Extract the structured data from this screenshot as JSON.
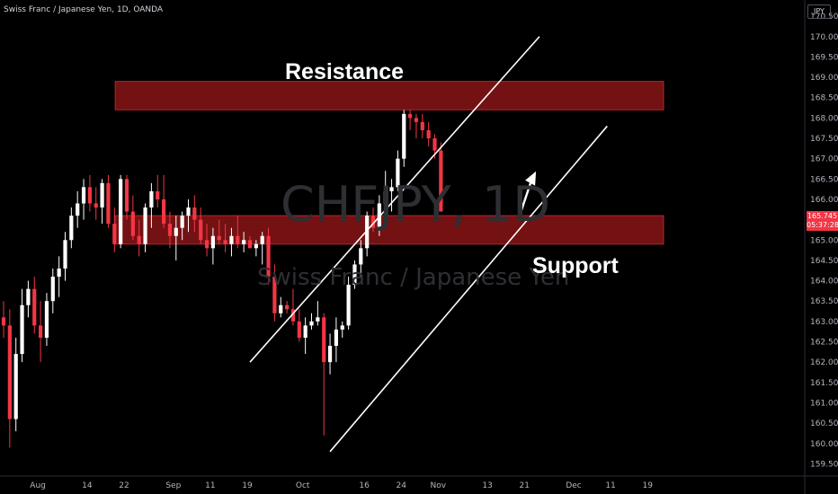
{
  "header": {
    "title": "Swiss Franc / Japanese Yen, 1D, OANDA",
    "currency": "JPY"
  },
  "price_tag": {
    "price": "165.745",
    "countdown": "05:37:28"
  },
  "watermark": {
    "symbol": "CHFJPY, 1D",
    "name": "Swiss Franc / Japanese Yen"
  },
  "annotations": {
    "resistance": "Resistance",
    "support": "Support"
  },
  "colors": {
    "up": "#ffffff",
    "down": "#f23645",
    "zone": "#7f1315",
    "zone_border": "#b3262b",
    "background": "#000000",
    "line": "#ffffff"
  },
  "chart_data": {
    "type": "candlestick",
    "y_ticks": [
      "159.500",
      "160.000",
      "160.500",
      "161.000",
      "161.500",
      "162.000",
      "162.500",
      "163.000",
      "163.500",
      "164.000",
      "164.500",
      "165.000",
      "165.500",
      "166.000",
      "166.500",
      "167.000",
      "167.500",
      "168.000",
      "168.500",
      "169.000",
      "169.500",
      "170.000",
      "170.500"
    ],
    "x_ticks": [
      {
        "label": "Aug",
        "bar": 6
      },
      {
        "label": "14",
        "bar": 14
      },
      {
        "label": "22",
        "bar": 20
      },
      {
        "label": "Sep",
        "bar": 28
      },
      {
        "label": "11",
        "bar": 34
      },
      {
        "label": "19",
        "bar": 40
      },
      {
        "label": "Oct",
        "bar": 49
      },
      {
        "label": "16",
        "bar": 59
      },
      {
        "label": "24",
        "bar": 65
      },
      {
        "label": "Nov",
        "bar": 71
      },
      {
        "label": "13",
        "bar": 79
      },
      {
        "label": "21",
        "bar": 85
      },
      {
        "label": "Dec",
        "bar": 93
      },
      {
        "label": "11",
        "bar": 99
      },
      {
        "label": "19",
        "bar": 105
      }
    ],
    "ylim": [
      159.2,
      170.9
    ],
    "candles": [
      [
        163.1,
        163.5,
        162.6,
        162.9
      ],
      [
        162.9,
        163.3,
        159.9,
        160.6
      ],
      [
        160.6,
        162.6,
        160.3,
        162.2
      ],
      [
        162.2,
        163.8,
        162.0,
        163.4
      ],
      [
        163.4,
        164.0,
        163.1,
        163.8
      ],
      [
        163.8,
        164.1,
        162.7,
        162.9
      ],
      [
        162.9,
        163.5,
        162.0,
        162.6
      ],
      [
        162.6,
        163.7,
        162.4,
        163.5
      ],
      [
        163.5,
        164.3,
        163.2,
        164.1
      ],
      [
        164.1,
        164.6,
        163.6,
        164.3
      ],
      [
        164.3,
        165.2,
        164.0,
        165.0
      ],
      [
        165.0,
        165.8,
        164.8,
        165.6
      ],
      [
        165.6,
        166.2,
        165.3,
        165.9
      ],
      [
        165.9,
        166.5,
        165.5,
        166.3
      ],
      [
        166.3,
        166.6,
        165.7,
        165.9
      ],
      [
        165.9,
        166.3,
        165.5,
        165.8
      ],
      [
        165.8,
        166.5,
        165.4,
        166.4
      ],
      [
        166.4,
        166.6,
        165.3,
        165.4
      ],
      [
        165.4,
        165.8,
        164.7,
        164.9
      ],
      [
        164.9,
        166.6,
        164.8,
        166.5
      ],
      [
        166.5,
        166.6,
        165.5,
        165.7
      ],
      [
        165.7,
        166.1,
        165.0,
        165.1
      ],
      [
        165.1,
        165.5,
        164.6,
        164.9
      ],
      [
        164.9,
        165.9,
        164.7,
        165.8
      ],
      [
        165.8,
        166.4,
        165.3,
        166.2
      ],
      [
        166.2,
        166.6,
        165.8,
        166.0
      ],
      [
        166.0,
        166.6,
        165.3,
        165.4
      ],
      [
        165.4,
        165.7,
        164.8,
        165.1
      ],
      [
        165.1,
        165.6,
        164.5,
        165.3
      ],
      [
        165.3,
        165.7,
        165.0,
        165.6
      ],
      [
        165.6,
        166.0,
        165.2,
        165.8
      ],
      [
        165.8,
        166.1,
        165.2,
        165.5
      ],
      [
        165.5,
        165.8,
        164.9,
        165.0
      ],
      [
        165.0,
        165.4,
        164.6,
        164.8
      ],
      [
        164.8,
        165.3,
        164.4,
        165.1
      ],
      [
        165.1,
        165.5,
        164.9,
        165.0
      ],
      [
        165.0,
        165.4,
        164.7,
        164.9
      ],
      [
        164.9,
        165.3,
        164.6,
        165.1
      ],
      [
        165.1,
        165.6,
        164.8,
        164.9
      ],
      [
        164.9,
        165.2,
        164.7,
        165.0
      ],
      [
        165.0,
        165.1,
        164.8,
        164.8
      ],
      [
        164.8,
        165.0,
        164.6,
        164.9
      ],
      [
        164.9,
        165.2,
        164.4,
        165.1
      ],
      [
        165.1,
        165.3,
        163.9,
        164.1
      ],
      [
        164.1,
        164.4,
        163.0,
        163.2
      ],
      [
        163.2,
        163.6,
        163.1,
        163.4
      ],
      [
        163.4,
        163.5,
        163.2,
        163.3
      ],
      [
        163.3,
        163.8,
        162.9,
        163.0
      ],
      [
        163.0,
        163.3,
        162.5,
        162.6
      ],
      [
        162.6,
        163.1,
        162.2,
        162.9
      ],
      [
        162.9,
        163.2,
        162.8,
        163.0
      ],
      [
        163.0,
        163.5,
        162.9,
        163.1
      ],
      [
        163.1,
        163.2,
        160.2,
        162.0
      ],
      [
        162.0,
        162.7,
        161.7,
        162.4
      ],
      [
        162.4,
        163.1,
        162.0,
        162.8
      ],
      [
        162.8,
        163.0,
        162.6,
        162.9
      ],
      [
        162.9,
        164.1,
        162.8,
        163.9
      ],
      [
        163.9,
        164.5,
        163.8,
        164.4
      ],
      [
        164.4,
        165.0,
        164.1,
        164.8
      ],
      [
        164.8,
        165.7,
        164.6,
        165.6
      ],
      [
        165.6,
        165.8,
        165.2,
        165.3
      ],
      [
        165.3,
        166.1,
        165.1,
        165.9
      ],
      [
        165.9,
        166.7,
        165.8,
        166.2
      ],
      [
        166.2,
        166.5,
        165.7,
        166.3
      ],
      [
        166.3,
        167.2,
        166.2,
        167.0
      ],
      [
        167.0,
        168.2,
        166.8,
        168.1
      ],
      [
        168.1,
        168.2,
        167.7,
        168.0
      ],
      [
        168.0,
        168.1,
        167.5,
        167.9
      ],
      [
        167.9,
        168.1,
        167.5,
        167.7
      ],
      [
        167.7,
        167.9,
        167.3,
        167.5
      ],
      [
        167.5,
        167.6,
        167.0,
        167.2
      ],
      [
        167.2,
        167.4,
        165.8,
        165.7
      ]
    ],
    "zones": [
      {
        "name": "Resistance",
        "from_bar": 19,
        "to_bar": 116,
        "low": 168.2,
        "high": 168.9
      },
      {
        "name": "Support",
        "from_bar": 19,
        "to_bar": 116,
        "low": 164.9,
        "high": 165.6
      }
    ],
    "channel_lines": [
      {
        "x1_bar": 40,
        "y1": 162.0,
        "x2_bar": 87,
        "y2": 170.0
      },
      {
        "x1_bar": 53,
        "y1": 159.8,
        "x2_bar": 98,
        "y2": 167.8
      }
    ],
    "arrow": {
      "x1_bar": 84,
      "y1": 165.7,
      "x2_bar": 86,
      "y2": 166.6
    }
  }
}
